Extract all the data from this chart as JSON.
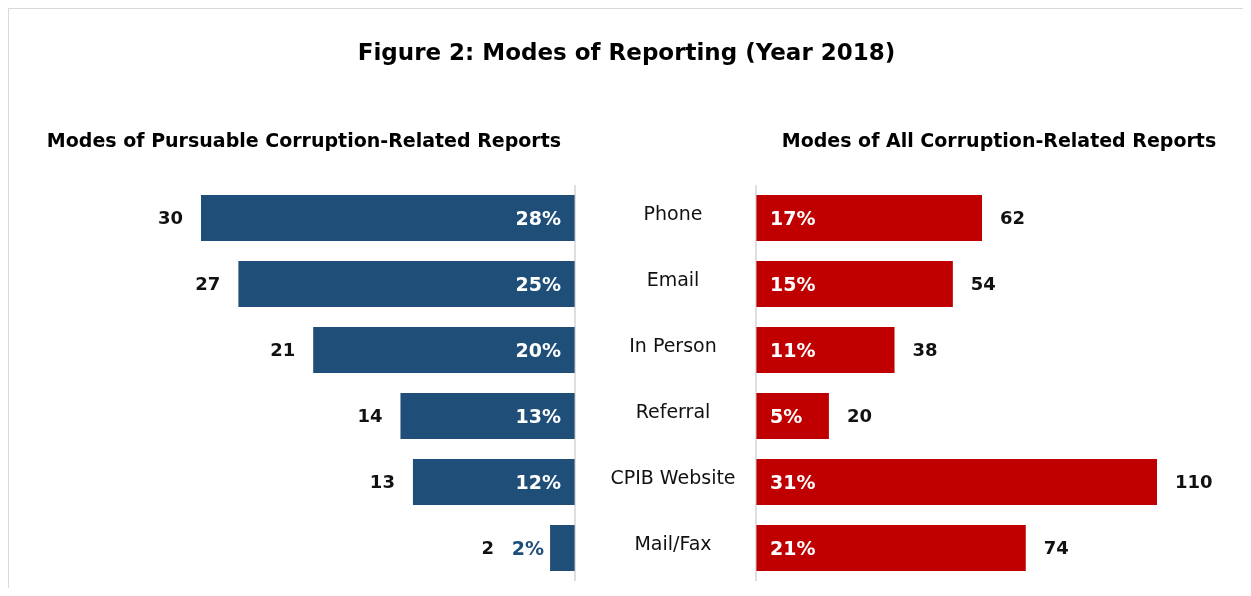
{
  "chart_data": [
    {
      "type": "bar",
      "orientation": "horizontal",
      "title": "Figure 2: Modes of Reporting (Year 2018)",
      "subtitle": "Modes of Pursuable Corruption-Related Reports",
      "categories": [
        "Phone",
        "Email",
        "In Person",
        "Referral",
        "CPIB Website",
        "Mail/Fax"
      ],
      "values": [
        30,
        27,
        21,
        14,
        13,
        2
      ],
      "color": "#1f4e79",
      "data_labels": true,
      "tick_labels": "y",
      "grid": false,
      "legend": false,
      "annotations": [
        "28%",
        "25%",
        "20%",
        "13%",
        "12%",
        "2%"
      ]
    },
    {
      "type": "bar",
      "orientation": "horizontal",
      "subtitle": "Modes of All Corruption-Related Reports",
      "categories": [
        null,
        null,
        null,
        null,
        null,
        null
      ],
      "values": [
        62,
        54,
        38,
        20,
        110,
        74
      ],
      "color": "#c00000",
      "data_labels": true,
      "tick_labels": false,
      "grid": false,
      "legend": false,
      "annotations": [
        "17%",
        "15%",
        "11%",
        "5%",
        "31%",
        "21%"
      ]
    }
  ]
}
